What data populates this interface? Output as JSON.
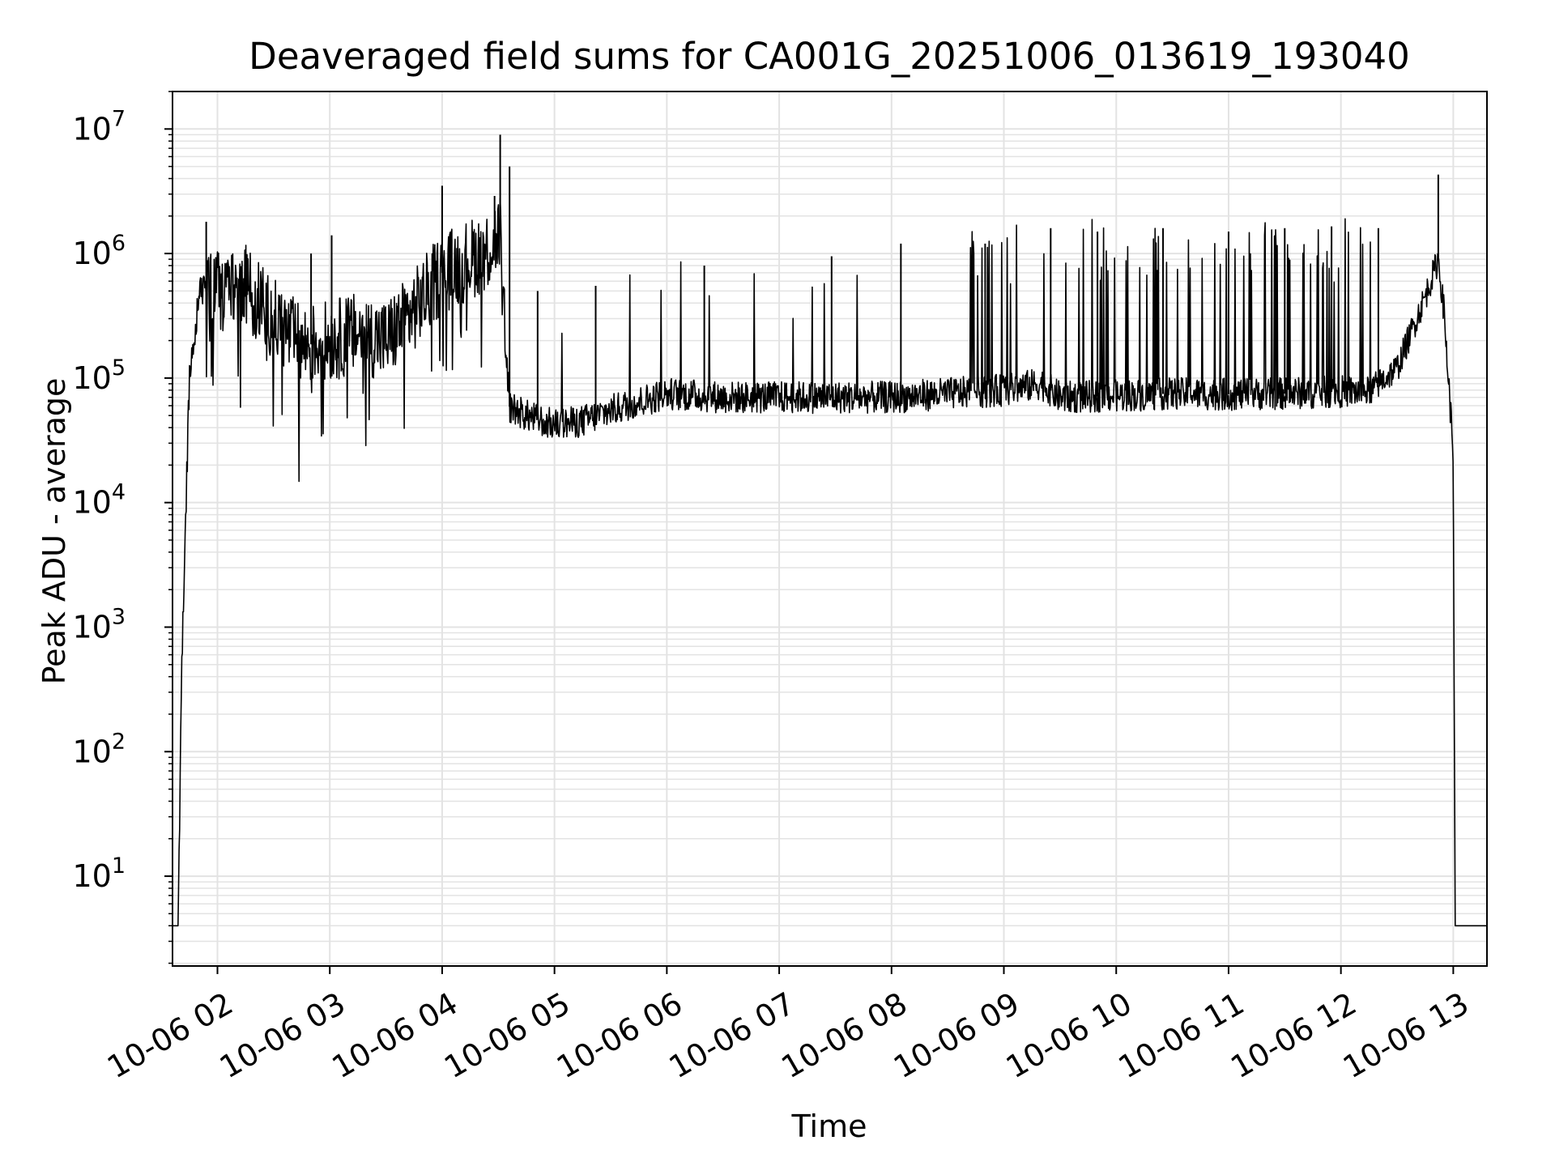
{
  "chart_data": {
    "type": "line",
    "title": "Deaveraged field sums for CA001G_20251006_013619_193040",
    "xlabel": "Time",
    "ylabel": "Peak ADU - average",
    "yscale": "log",
    "xlim": [
      "10-06 01:36",
      "10-06 13:18"
    ],
    "ylim": [
      1.9,
      20000000
    ],
    "grid": true,
    "legend": "none",
    "line_color": "#000000",
    "x_ticks": [
      {
        "label": "10-06 02",
        "hour": 2
      },
      {
        "label": "10-06 03",
        "hour": 3
      },
      {
        "label": "10-06 04",
        "hour": 4
      },
      {
        "label": "10-06 05",
        "hour": 5
      },
      {
        "label": "10-06 06",
        "hour": 6
      },
      {
        "label": "10-06 07",
        "hour": 7
      },
      {
        "label": "10-06 08",
        "hour": 8
      },
      {
        "label": "10-06 09",
        "hour": 9
      },
      {
        "label": "10-06 10",
        "hour": 10
      },
      {
        "label": "10-06 11",
        "hour": 11
      },
      {
        "label": "10-06 12",
        "hour": 12
      },
      {
        "label": "10-06 13",
        "hour": 13
      }
    ],
    "y_ticks": [
      {
        "base": "10",
        "exp": "1",
        "value": 10
      },
      {
        "base": "10",
        "exp": "2",
        "value": 100
      },
      {
        "base": "10",
        "exp": "3",
        "value": 1000
      },
      {
        "base": "10",
        "exp": "4",
        "value": 10000
      },
      {
        "base": "10",
        "exp": "5",
        "value": 100000
      },
      {
        "base": "10",
        "exp": "6",
        "value": 1000000
      },
      {
        "base": "10",
        "exp": "7",
        "value": 10000000
      }
    ],
    "series": [
      {
        "x": [
          "10-06 01:36",
          "10-06 01:39",
          "10-06 01:41",
          "10-06 01:42",
          "10-06 01:45",
          "10-06 01:48",
          "10-06 01:51",
          "10-06 02:00",
          "10-06 02:15",
          "10-06 02:30",
          "10-06 02:45",
          "10-06 03:00",
          "10-06 03:15",
          "10-06 03:30",
          "10-06 03:45",
          "10-06 04:00",
          "10-06 04:15",
          "10-06 04:25",
          "10-06 04:31",
          "10-06 04:35",
          "10-06 04:45",
          "10-06 05:00",
          "10-06 05:15",
          "10-06 05:30",
          "10-06 06:00",
          "10-06 06:30",
          "10-06 07:00",
          "10-06 07:30",
          "10-06 08:00",
          "10-06 08:30",
          "10-06 09:00",
          "10-06 09:20",
          "10-06 09:30",
          "10-06 10:00",
          "10-06 10:30",
          "10-06 11:00",
          "10-06 11:30",
          "10-06 12:00",
          "10-06 12:15",
          "10-06 12:30",
          "10-06 12:45",
          "10-06 12:52",
          "10-06 12:55",
          "10-06 13:00",
          "10-06 13:01",
          "10-06 13:02",
          "10-06 13:18"
        ],
        "y": [
          4,
          4,
          500,
          2000,
          100000,
          250000,
          500000,
          500000,
          550000,
          300000,
          180000,
          200000,
          230000,
          200000,
          350000,
          700000,
          900000,
          1100000,
          1500000,
          60000,
          50000,
          42000,
          45000,
          55000,
          75000,
          70000,
          70000,
          70000,
          70000,
          75000,
          80000,
          90000,
          70000,
          72000,
          75000,
          74000,
          75000,
          78000,
          78000,
          120000,
          450000,
          900000,
          350000,
          25000,
          4,
          4,
          4
        ]
      },
      {
        "x": [
          "10-06 01:54",
          "10-06 02:50",
          "10-06 03:01",
          "10-06 04:00",
          "10-06 04:28",
          "10-06 04:31",
          "10-06 04:36",
          "10-06 04:51",
          "10-06 05:22",
          "10-06 06:20",
          "10-06 07:28",
          "10-06 08:05",
          "10-06 08:50",
          "10-06 09:25",
          "10-06 09:50",
          "10-06 10:25",
          "10-06 11:00",
          "10-06 11:30",
          "10-06 11:55",
          "10-06 12:20",
          "10-06 12:52"
        ],
        "y": [
          1800000,
          1000000,
          1400000,
          3500000,
          2900000,
          9000000,
          5000000,
          500000,
          550000,
          800000,
          950000,
          1200000,
          1200000,
          1600000,
          1500000,
          1600000,
          1500000,
          1600000,
          1650000,
          1600000,
          4300000
        ],
        "mark": "spike"
      }
    ]
  }
}
